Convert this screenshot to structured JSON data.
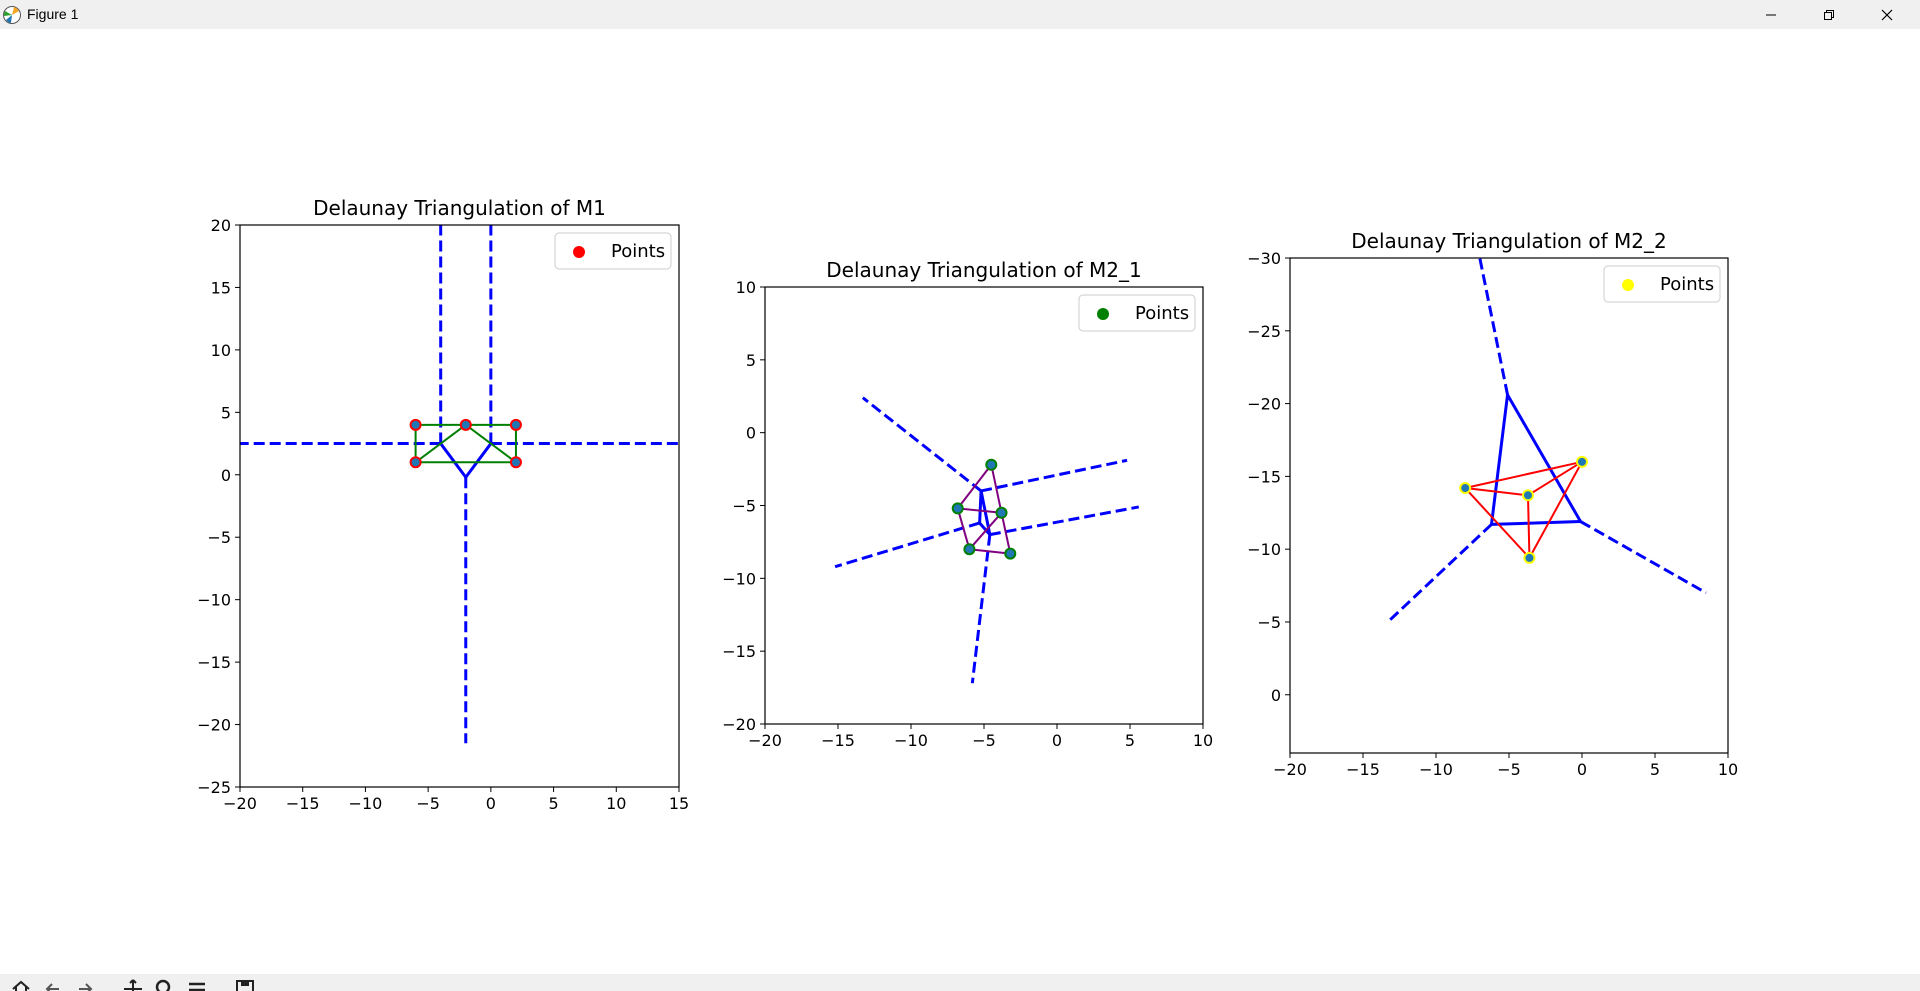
{
  "window": {
    "title": "Figure 1",
    "buttons": {
      "minimize": "minimize",
      "restore": "restore",
      "close": "close"
    }
  },
  "toolbar": {
    "icons": [
      "home-icon",
      "back-icon",
      "forward-icon",
      "pan-icon",
      "zoom-icon",
      "configure-icon",
      "save-icon"
    ]
  },
  "colors": {
    "voronoi": "#0000ff",
    "m1_points": "#ff0000",
    "m1_edges": "#008000",
    "m21_points": "#008000",
    "m21_edges": "#800080",
    "m22_points": "#ffff00",
    "m22_edges": "#ff0000",
    "marker_fill": "#1f77b4"
  },
  "chart_data": [
    {
      "type": "scatter",
      "title": "Delaunay Triangulation of M1",
      "xlim": [
        -20,
        15
      ],
      "ylim": [
        -25,
        20
      ],
      "xticks": [
        -20,
        -15,
        -10,
        -5,
        0,
        5,
        10,
        15
      ],
      "yticks": [
        -25,
        -20,
        -15,
        -10,
        -5,
        0,
        5,
        10,
        15,
        20
      ],
      "y_inverted": false,
      "legend": {
        "label": "Points",
        "color": "#ff0000",
        "position": "upper right"
      },
      "points": [
        [
          -6,
          1
        ],
        [
          -6,
          4
        ],
        [
          -2,
          4
        ],
        [
          2,
          4
        ],
        [
          2,
          1
        ]
      ],
      "delaunay_edges": [
        [
          [
            -6,
            1
          ],
          [
            -6,
            4
          ]
        ],
        [
          [
            -6,
            4
          ],
          [
            -2,
            4
          ]
        ],
        [
          [
            -2,
            4
          ],
          [
            2,
            4
          ]
        ],
        [
          [
            2,
            4
          ],
          [
            2,
            1
          ]
        ],
        [
          [
            2,
            1
          ],
          [
            -6,
            1
          ]
        ],
        [
          [
            -6,
            1
          ],
          [
            -2,
            4
          ]
        ],
        [
          [
            -2,
            4
          ],
          [
            2,
            1
          ]
        ]
      ],
      "voronoi_finite": [
        [
          [
            -4,
            2.5
          ],
          [
            -2,
            -0.2
          ]
        ],
        [
          [
            -2,
            -0.2
          ],
          [
            0,
            2.5
          ]
        ]
      ],
      "voronoi_infinite": [
        [
          [
            -4,
            2.5
          ],
          [
            -4,
            20
          ]
        ],
        [
          [
            0,
            2.5
          ],
          [
            0,
            20
          ]
        ],
        [
          [
            -2,
            -0.2
          ],
          [
            -2,
            -21.5
          ]
        ],
        [
          [
            -4,
            2.5
          ],
          [
            -20,
            2.5
          ]
        ],
        [
          [
            0,
            2.5
          ],
          [
            15,
            2.5
          ]
        ]
      ]
    },
    {
      "type": "scatter",
      "title": "Delaunay Triangulation of M2_1",
      "xlim": [
        -20,
        10
      ],
      "ylim": [
        -20,
        10
      ],
      "xticks": [
        -20,
        -15,
        -10,
        -5,
        0,
        5,
        10
      ],
      "yticks": [
        -20,
        -15,
        -10,
        -5,
        0,
        5,
        10
      ],
      "y_inverted": false,
      "legend": {
        "label": "Points",
        "color": "#008000",
        "position": "upper right"
      },
      "points": [
        [
          -4.5,
          -2.2
        ],
        [
          -6.8,
          -5.2
        ],
        [
          -3.8,
          -5.5
        ],
        [
          -6,
          -8
        ],
        [
          -3.2,
          -8.3
        ]
      ],
      "delaunay_edges": [
        [
          [
            -4.5,
            -2.2
          ],
          [
            -6.8,
            -5.2
          ]
        ],
        [
          [
            -4.5,
            -2.2
          ],
          [
            -3.8,
            -5.5
          ]
        ],
        [
          [
            -6.8,
            -5.2
          ],
          [
            -3.8,
            -5.5
          ]
        ],
        [
          [
            -6.8,
            -5.2
          ],
          [
            -6,
            -8
          ]
        ],
        [
          [
            -6,
            -8
          ],
          [
            -3.8,
            -5.5
          ]
        ],
        [
          [
            -3.8,
            -5.5
          ],
          [
            -3.2,
            -8.3
          ]
        ],
        [
          [
            -6,
            -8
          ],
          [
            -3.2,
            -8.3
          ]
        ]
      ],
      "voronoi_finite": [
        [
          [
            -5.2,
            -4
          ],
          [
            -5.3,
            -6.2
          ]
        ],
        [
          [
            -5.3,
            -6.2
          ],
          [
            -4.6,
            -7
          ]
        ],
        [
          [
            -4.6,
            -7
          ],
          [
            -5.2,
            -4
          ]
        ]
      ],
      "voronoi_infinite": [
        [
          [
            -5.2,
            -4
          ],
          [
            -13.3,
            2.4
          ]
        ],
        [
          [
            -5.2,
            -4
          ],
          [
            4.8,
            -1.9
          ]
        ],
        [
          [
            -5.3,
            -6.2
          ],
          [
            -15.2,
            -9.2
          ]
        ],
        [
          [
            -4.6,
            -7
          ],
          [
            5.6,
            -5.1
          ]
        ],
        [
          [
            -4.6,
            -7
          ],
          [
            -5.8,
            -17.2
          ]
        ]
      ]
    },
    {
      "type": "scatter",
      "title": "Delaunay Triangulation of M2_2",
      "xlim": [
        -20,
        10
      ],
      "ylim": [
        -30,
        4
      ],
      "xticks": [
        -20,
        -15,
        -10,
        -5,
        0,
        5,
        10
      ],
      "yticks": [
        -30,
        -25,
        -20,
        -15,
        -10,
        -5,
        0
      ],
      "y_inverted": true,
      "legend": {
        "label": "Points",
        "color": "#ffff00",
        "position": "upper right"
      },
      "points": [
        [
          0,
          -16
        ],
        [
          -8,
          -14.2
        ],
        [
          -3.7,
          -13.7
        ],
        [
          -3.6,
          -9.4
        ]
      ],
      "delaunay_edges": [
        [
          [
            0,
            -16
          ],
          [
            -8,
            -14.2
          ]
        ],
        [
          [
            0,
            -16
          ],
          [
            -3.7,
            -13.7
          ]
        ],
        [
          [
            -8,
            -14.2
          ],
          [
            -3.7,
            -13.7
          ]
        ],
        [
          [
            -8,
            -14.2
          ],
          [
            -3.6,
            -9.4
          ]
        ],
        [
          [
            -3.7,
            -13.7
          ],
          [
            -3.6,
            -9.4
          ]
        ],
        [
          [
            -3.6,
            -9.4
          ],
          [
            0,
            -16
          ]
        ]
      ],
      "voronoi_finite": [
        [
          [
            -5.1,
            -20.6
          ],
          [
            -6.2,
            -11.7
          ]
        ],
        [
          [
            -6.2,
            -11.7
          ],
          [
            -0.1,
            -11.9
          ]
        ],
        [
          [
            -0.1,
            -11.9
          ],
          [
            -5.1,
            -20.6
          ]
        ]
      ],
      "voronoi_infinite": [
        [
          [
            -5.1,
            -20.6
          ],
          [
            -7,
            -30
          ]
        ],
        [
          [
            -6.2,
            -11.7
          ],
          [
            -13.3,
            -5
          ]
        ],
        [
          [
            -0.1,
            -11.9
          ],
          [
            8.5,
            -7
          ]
        ]
      ]
    }
  ]
}
